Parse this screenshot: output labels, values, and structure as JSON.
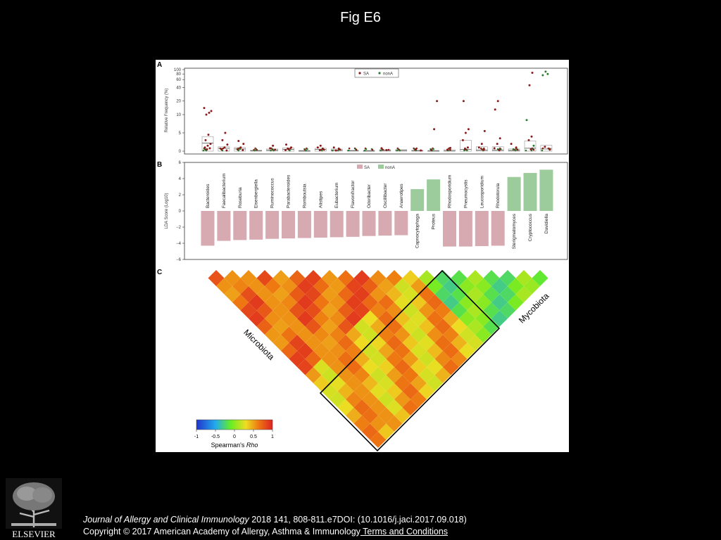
{
  "slide": {
    "title": "Fig E6"
  },
  "figure": {
    "panels": {
      "a": "A",
      "b": "B",
      "c": "C"
    },
    "triangle_labels": {
      "left": "Microbiota",
      "right": "Mycobiota"
    },
    "colorbar": {
      "ticks": [
        "-1",
        "-0.5",
        "0",
        "0.5",
        "1"
      ],
      "label_prefix": "Spearman's ",
      "label_italic": "Rho",
      "colors": [
        "#2233cc",
        "#22aaee",
        "#66ee22",
        "#eedd22",
        "#ee7711",
        "#dd2222"
      ]
    }
  },
  "chart_data": [
    {
      "type": "scatter",
      "panel": "A",
      "ylabel": "Relative Frequency (%)",
      "y_ticks": [
        "0",
        "5",
        "10",
        "20",
        "40",
        "60",
        "80",
        "100"
      ],
      "scale": "split: linear 0-10, log-like 10-100",
      "legend": [
        "SA",
        "nonA"
      ],
      "colors": {
        "SA": "#8b1a1a",
        "nonA": "#2f7d32"
      },
      "categories": [
        "Bacteroides",
        "Faecalibacterium",
        "Roseburia",
        "Eisenbergiella",
        "Ruminococcus",
        "Parabacteroides",
        "Romboutsia",
        "Alistipes",
        "Eubacterium",
        "Flavonifractor",
        "Odoribacter",
        "Oscillibacter",
        "Anaerotipes",
        "Capnocytophaga",
        "Proteus",
        "Rhodosporidium",
        "Pneumocystis",
        "Leucosporidium",
        "Rhodotorula",
        "Sterigmatomyces",
        "Cryptococcus",
        "Davidiella"
      ],
      "box_median": [
        2.2,
        0.8,
        0.6,
        0.1,
        0.3,
        0.5,
        0.1,
        0.5,
        0.3,
        0.1,
        0.1,
        0.2,
        0.2,
        0.1,
        0.1,
        0.1,
        0.5,
        0.3,
        0.3,
        0.2,
        0.8,
        0.6
      ],
      "box_q3": [
        4.0,
        1.2,
        1.0,
        0.3,
        0.6,
        0.9,
        0.2,
        0.8,
        0.6,
        0.3,
        0.2,
        0.4,
        0.4,
        0.3,
        0.2,
        0.4,
        3.0,
        1.2,
        1.2,
        0.6,
        2.8,
        1.6
      ],
      "outliers": [
        {
          "cat": 0,
          "y": [
            14,
            11,
            10,
            12,
            4.5,
            3,
            2,
            1.5,
            1,
            0.8,
            0.5
          ]
        },
        {
          "cat": 1,
          "y": [
            5,
            3,
            1.8,
            1,
            0.5,
            0.2
          ]
        },
        {
          "cat": 2,
          "y": [
            2.8,
            2,
            1,
            0.6,
            0.3
          ]
        },
        {
          "cat": 4,
          "y": [
            1.5,
            0.8,
            0.4
          ]
        },
        {
          "cat": 5,
          "y": [
            1.8,
            1,
            0.6,
            0.3
          ]
        },
        {
          "cat": 7,
          "y": [
            1.5,
            1,
            0.6,
            0.3
          ]
        },
        {
          "cat": 8,
          "y": [
            1,
            0.6,
            0.2
          ]
        },
        {
          "cat": 11,
          "y": [
            0.8,
            0.3
          ]
        },
        {
          "cat": 13,
          "y": [
            0.5,
            0.2
          ]
        },
        {
          "cat": 14,
          "y": [
            20,
            6,
            0.3
          ]
        },
        {
          "cat": 15,
          "y": [
            0.9,
            0.4
          ]
        },
        {
          "cat": 16,
          "y": [
            20,
            6,
            5,
            3,
            1,
            0.5
          ]
        },
        {
          "cat": 17,
          "y": [
            5.5,
            2,
            1,
            0.4
          ]
        },
        {
          "cat": 18,
          "y": [
            20,
            13,
            3.5,
            2,
            0.8,
            0.3
          ]
        },
        {
          "cat": 19,
          "y": [
            2,
            1,
            0.5
          ]
        },
        {
          "cat": 20,
          "y": [
            85,
            45,
            8.5,
            4,
            3,
            1.5,
            0.5
          ]
        },
        {
          "cat": 21,
          "y": [
            90,
            75,
            80,
            1.2,
            0.6
          ]
        }
      ]
    },
    {
      "type": "bar",
      "panel": "B",
      "ylabel": "LDA Score (Log10)",
      "ylim": [
        -6,
        6
      ],
      "y_ticks": [
        "6",
        "4",
        "2",
        "0",
        "−2",
        "−4",
        "−6"
      ],
      "legend": [
        "SA",
        "nonA"
      ],
      "colors": {
        "SA": "#d6aab0",
        "nonA": "#9ccc9c"
      },
      "categories": [
        "Bacteroides",
        "Faecalibacterium",
        "Roseburia",
        "Eisenbergiella",
        "Ruminococcus",
        "Parabacteroides",
        "Romboutsia",
        "Alistipes",
        "Eubacterium",
        "Flavonifractor",
        "Odoribacter",
        "Oscillibacter",
        "Anaerotipes",
        "Capnocytophaga",
        "Proteus",
        "Rhodosporidium",
        "Pneumocystis",
        "Leucosporidium",
        "Rhodotorula",
        "Sterigmatomyces",
        "Cryptococcus",
        "Davidiella"
      ],
      "values": [
        -4.3,
        -3.7,
        -3.6,
        -3.55,
        -3.45,
        -3.4,
        -3.35,
        -3.3,
        -3.25,
        -3.2,
        -3.1,
        -3.05,
        -3.0,
        2.7,
        3.9,
        -4.4,
        -4.4,
        -4.35,
        -4.3,
        4.2,
        4.7,
        5.1
      ],
      "groups": [
        "SA",
        "SA",
        "SA",
        "SA",
        "SA",
        "SA",
        "SA",
        "SA",
        "SA",
        "SA",
        "SA",
        "SA",
        "SA",
        "nonA",
        "nonA",
        "SA",
        "SA",
        "SA",
        "SA",
        "nonA",
        "nonA",
        "nonA"
      ]
    },
    {
      "type": "heatmap",
      "panel": "C",
      "shape": "lower-triangle correlation matrix",
      "n": 22,
      "metric": "Spearman's Rho",
      "range": [
        -1,
        1
      ]
    }
  ],
  "citation": {
    "journal": "Journal of Allergy and Clinical Immunology",
    "details": " 2018 141, 808-811.e7DOI: (10.1016/j.jaci.2017.09.018)",
    "copyright": "Copyright © 2017 American Academy of Allergy, Asthma & Immunology",
    "link": " Terms and Conditions"
  },
  "logo": {
    "text": "ELSEVIER"
  }
}
